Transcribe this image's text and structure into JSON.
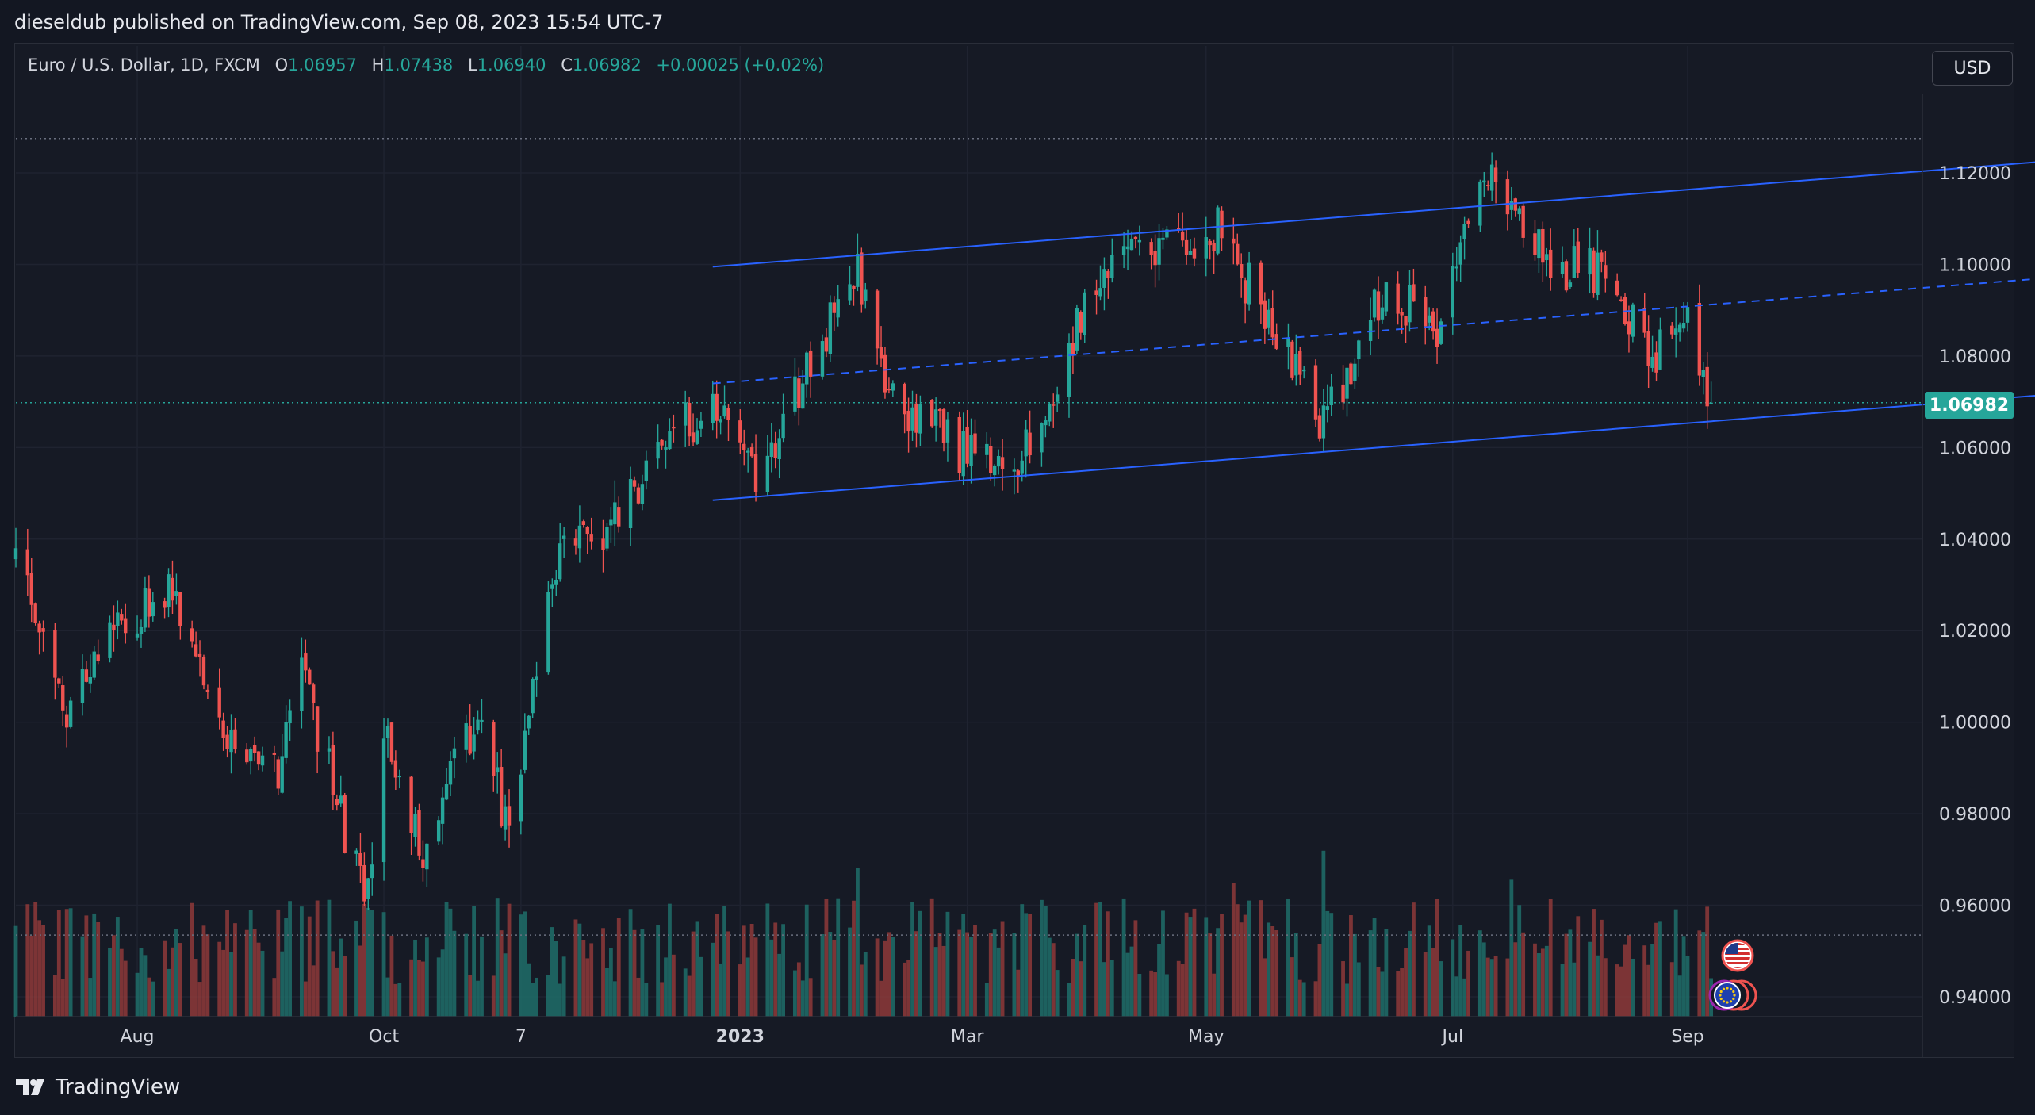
{
  "header": {
    "published_line": "dieseldub published on TradingView.com, Sep 08, 2023 15:54 UTC-7"
  },
  "legend": {
    "symbol": "Euro / U.S. Dollar, 1D, FXCM",
    "open_label": "O",
    "open": "1.06957",
    "high_label": "H",
    "high": "1.07438",
    "low_label": "L",
    "low": "1.06940",
    "close_label": "C",
    "close": "1.06982",
    "change": "+0.00025 (+0.02%)"
  },
  "currency_button": "USD",
  "last_price_label": "1.06982",
  "footer": {
    "brand": "TradingView"
  },
  "colors": {
    "up": "#26a69a",
    "down": "#ef5350",
    "channel": "#2962ff",
    "grid": "#1f2330",
    "background": "#131722"
  },
  "event_icons": [
    "us-flag-icon",
    "eu-flag-icon"
  ],
  "chart_data": {
    "type": "candlestick",
    "title": "Euro / U.S. Dollar, 1D, FXCM",
    "x_range": [
      "2022-07-01",
      "2023-12-31"
    ],
    "ylim": [
      0.935,
      1.135
    ],
    "y_ticks": [
      "1.12000",
      "1.10000",
      "1.08000",
      "1.06000",
      "1.04000",
      "1.02000",
      "1.00000",
      "0.98000",
      "0.96000",
      "0.94000"
    ],
    "x_ticks": [
      {
        "label": "Aug",
        "date": "2022-08-01"
      },
      {
        "label": "Oct",
        "date": "2022-10-03"
      },
      {
        "label": "7",
        "date": "2022-11-07"
      },
      {
        "label": "2023",
        "date": "2023-01-02"
      },
      {
        "label": "Mar",
        "date": "2023-03-01"
      },
      {
        "label": "May",
        "date": "2023-05-01"
      },
      {
        "label": "Jul",
        "date": "2023-07-03"
      },
      {
        "label": "Sep",
        "date": "2023-09-01"
      }
    ],
    "close_path": [
      [
        "2022-07-01",
        1.035
      ],
      [
        "2022-07-14",
        1.002
      ],
      [
        "2022-07-27",
        1.02
      ],
      [
        "2022-08-10",
        1.03
      ],
      [
        "2022-08-23",
        0.995
      ],
      [
        "2022-09-06",
        0.99
      ],
      [
        "2022-09-12",
        1.012
      ],
      [
        "2022-09-28",
        0.96
      ],
      [
        "2022-10-04",
        0.998
      ],
      [
        "2022-10-13",
        0.972
      ],
      [
        "2022-10-27",
        1.002
      ],
      [
        "2022-11-04",
        0.975
      ],
      [
        "2022-11-15",
        1.035
      ],
      [
        "2022-11-28",
        1.04
      ],
      [
        "2022-12-14",
        1.063
      ],
      [
        "2022-12-30",
        1.07
      ],
      [
        "2023-01-06",
        1.052
      ],
      [
        "2023-01-26",
        1.09
      ],
      [
        "2023-02-01",
        1.1
      ],
      [
        "2023-02-10",
        1.07
      ],
      [
        "2023-03-07",
        1.055
      ],
      [
        "2023-03-15",
        1.058
      ],
      [
        "2023-03-31",
        1.09
      ],
      [
        "2023-04-14",
        1.105
      ],
      [
        "2023-04-26",
        1.102
      ],
      [
        "2023-05-04",
        1.108
      ],
      [
        "2023-05-31",
        1.065
      ],
      [
        "2023-06-15",
        1.095
      ],
      [
        "2023-06-29",
        1.087
      ],
      [
        "2023-07-13",
        1.122
      ],
      [
        "2023-07-27",
        1.1
      ],
      [
        "2023-08-10",
        1.098
      ],
      [
        "2023-08-24",
        1.079
      ],
      [
        "2023-08-30",
        1.092
      ],
      [
        "2023-09-07",
        1.07
      ]
    ],
    "trend_channel": {
      "upper": [
        [
          "2022-12-26",
          1.0995
        ],
        [
          "2023-12-31",
          1.1245
        ]
      ],
      "middle": [
        [
          "2022-12-26",
          1.074
        ],
        [
          "2023-12-31",
          1.099
        ]
      ],
      "lower": [
        [
          "2022-12-26",
          1.0485
        ],
        [
          "2023-12-31",
          1.0735
        ]
      ]
    },
    "dotted_levels": [
      1.1275,
      1.0698,
      0.9535
    ],
    "last_price": 1.06982,
    "volume": "relative histogram at bottom, colored by candle direction"
  }
}
